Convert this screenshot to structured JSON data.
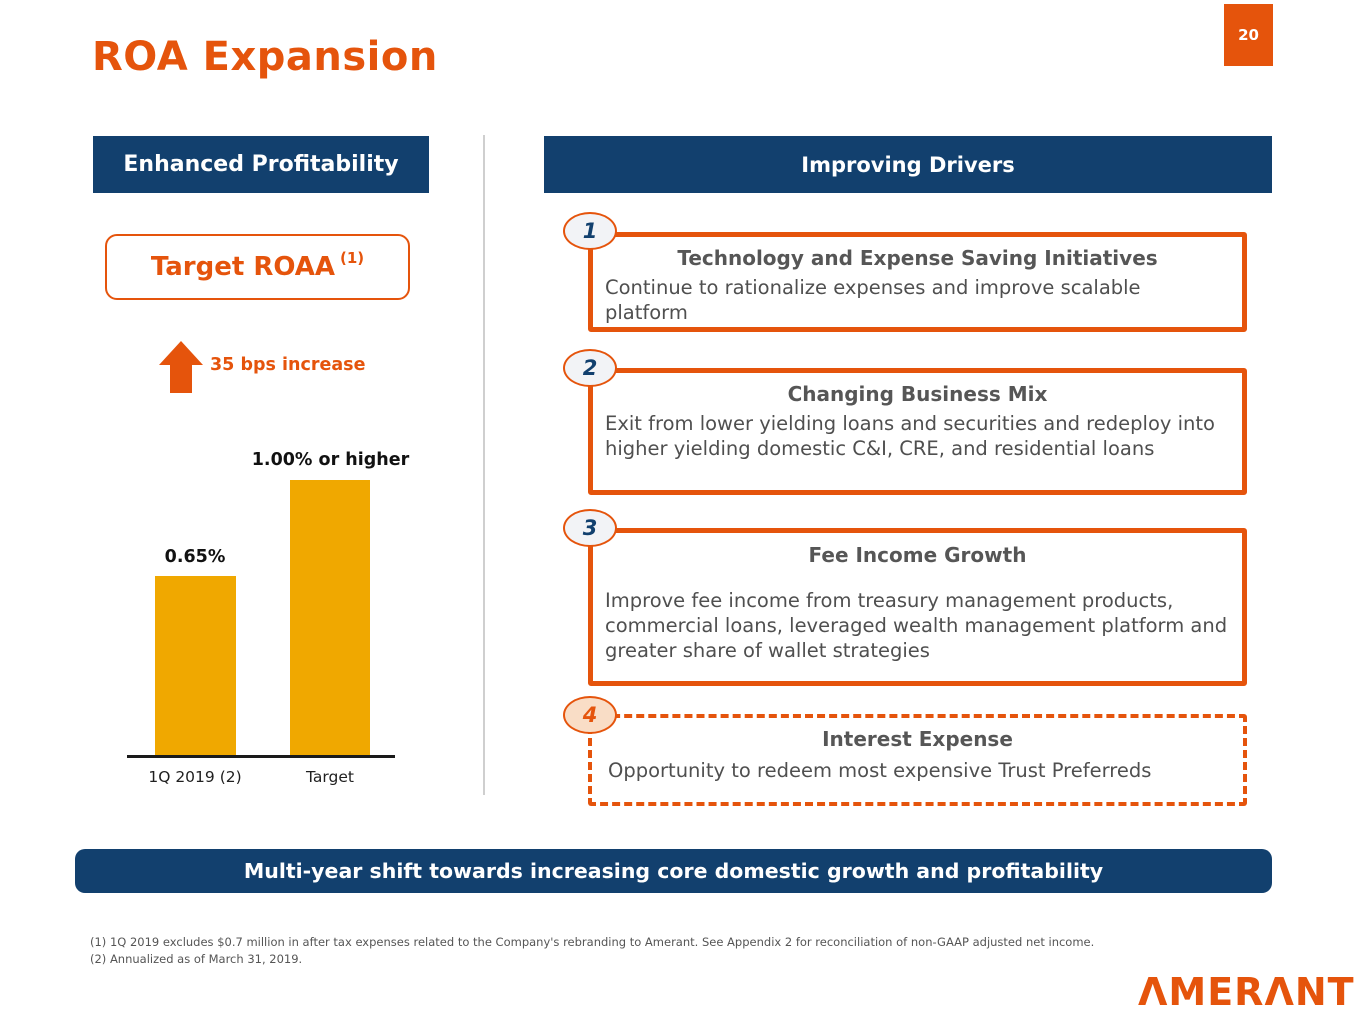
{
  "page": {
    "number": "20"
  },
  "title": "ROA Expansion",
  "left_panel": {
    "header": "Enhanced Profitability",
    "target_label": "Target ROAA",
    "target_superscript": "(1)",
    "increase_label": "35 bps increase"
  },
  "chart_data": {
    "type": "bar",
    "title": "",
    "xlabel": "",
    "ylabel": "",
    "categories": [
      "1Q 2019 (2)",
      "Target"
    ],
    "values": [
      0.65,
      1.0
    ],
    "value_labels": [
      "0.65%",
      "1.00% or higher"
    ],
    "ylim": [
      0,
      1.1
    ],
    "grid": false,
    "legend": false,
    "bar_color": "#F0A800"
  },
  "right_panel": {
    "header": "Improving Drivers",
    "drivers": [
      {
        "number": "1",
        "title": "Technology and Expense Saving Initiatives",
        "body": "Continue to rationalize expenses and improve scalable platform",
        "border_style": "solid"
      },
      {
        "number": "2",
        "title": "Changing Business Mix",
        "body": "Exit from lower yielding loans and securities and redeploy into higher yielding domestic C&I, CRE, and residential loans",
        "border_style": "solid"
      },
      {
        "number": "3",
        "title": "Fee Income Growth",
        "body": "Improve fee income from treasury management products, commercial loans, leveraged wealth management platform and greater share of wallet strategies",
        "border_style": "solid"
      },
      {
        "number": "4",
        "title": "Interest Expense",
        "body": "Opportunity to redeem most expensive Trust Preferreds",
        "border_style": "dashed"
      }
    ]
  },
  "banner": "Multi-year shift towards increasing core domestic growth and profitability",
  "footnotes": [
    "(1)  1Q 2019 excludes $0.7 million in after tax expenses related to the Company's rebranding to Amerant. See Appendix 2 for reconciliation of non-GAAP adjusted net income.",
    "(2)  Annualized as of March 31, 2019."
  ],
  "logo_text": "ΛMERΛNT",
  "colors": {
    "accent_orange": "#E5540C",
    "navy": "#12406E",
    "bar_gold": "#F0A800"
  }
}
